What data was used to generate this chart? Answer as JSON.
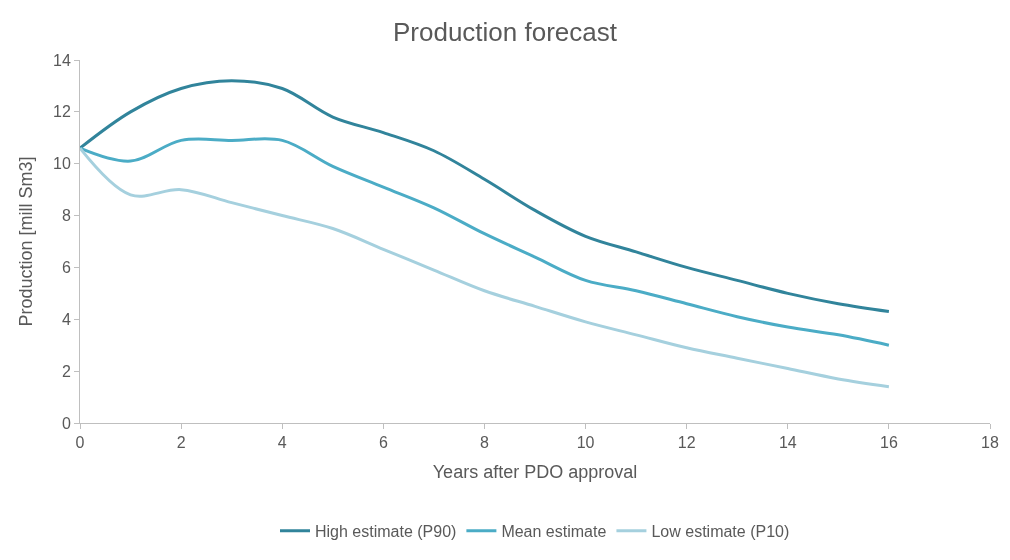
{
  "chart_data": {
    "type": "line",
    "title": "Production forecast",
    "xlabel": "Years after PDO approval",
    "ylabel": "Production [mill Sm3]",
    "x": [
      0,
      1,
      2,
      3,
      4,
      5,
      6,
      7,
      8,
      9,
      10,
      11,
      12,
      13,
      14,
      15,
      16
    ],
    "series": [
      {
        "name": "High estimate (P90)",
        "color": "#31849b",
        "values": [
          10.6,
          12.0,
          12.9,
          13.2,
          12.9,
          11.8,
          11.2,
          10.5,
          9.4,
          8.2,
          7.2,
          6.6,
          6.0,
          5.5,
          5.0,
          4.6,
          4.3
        ]
      },
      {
        "name": "Mean estimate",
        "color": "#4bacc6",
        "values": [
          10.6,
          10.1,
          10.9,
          10.9,
          10.9,
          9.9,
          9.1,
          8.3,
          7.3,
          6.4,
          5.5,
          5.1,
          4.6,
          4.1,
          3.7,
          3.4,
          3.0
        ]
      },
      {
        "name": "Low estimate (P10)",
        "color": "#a5d0de",
        "values": [
          10.6,
          8.8,
          9.0,
          8.5,
          8.0,
          7.5,
          6.7,
          5.9,
          5.1,
          4.5,
          3.9,
          3.4,
          2.9,
          2.5,
          2.1,
          1.7,
          1.4
        ]
      }
    ],
    "xlim": [
      0,
      18
    ],
    "xticks": [
      0,
      2,
      4,
      6,
      8,
      10,
      12,
      14,
      16,
      18
    ],
    "ylim": [
      0,
      14
    ],
    "yticks": [
      0,
      2,
      4,
      6,
      8,
      10,
      12,
      14
    ],
    "grid": false,
    "legend": "bottom",
    "marker": "none",
    "line_style": "solid"
  }
}
